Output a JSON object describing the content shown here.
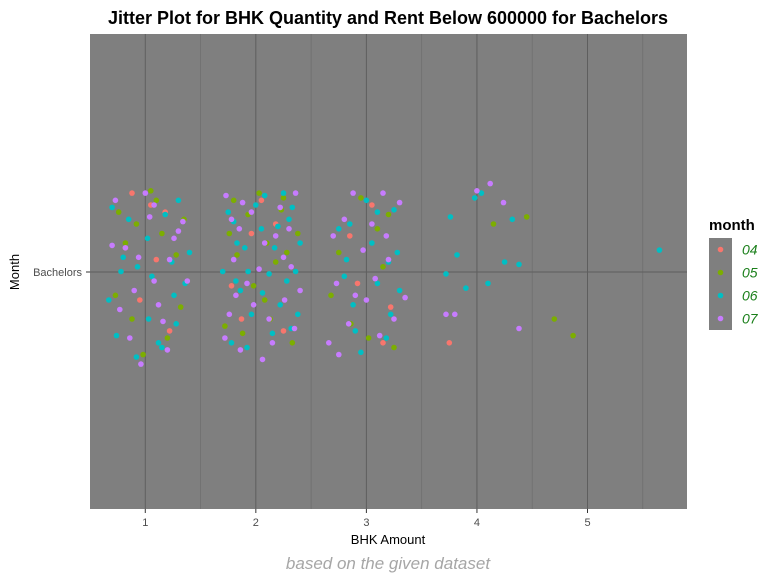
{
  "chart_data": {
    "type": "scatter",
    "title": "Jitter Plot for BHK Quantity and Rent Below 600000 for Bachelors",
    "xlabel": "BHK Amount",
    "ylabel": "Month",
    "caption": "based on the given dataset",
    "x_ticks": [
      "1",
      "2",
      "3",
      "4",
      "5"
    ],
    "y_categories": [
      "Bachelors"
    ],
    "xlim": [
      0.5,
      5.9
    ],
    "jitter": {
      "x_width": 0.4,
      "y_height": 0.4
    },
    "grid": true,
    "background": "#7f7f7f",
    "legend": {
      "title": "month",
      "position": "right"
    },
    "series": [
      {
        "name": "04",
        "color": "#F8766D",
        "points": [
          [
            0.88,
            0.33
          ],
          [
            1.05,
            0.28
          ],
          [
            1.18,
            0.25
          ],
          [
            0.95,
            -0.12
          ],
          [
            1.22,
            -0.25
          ],
          [
            0.82,
            0.1
          ],
          [
            1.1,
            0.05
          ],
          [
            1.96,
            0.16
          ],
          [
            2.18,
            0.2
          ],
          [
            1.87,
            -0.2
          ],
          [
            2.25,
            -0.25
          ],
          [
            2.05,
            0.3
          ],
          [
            1.78,
            -0.06
          ],
          [
            3.05,
            0.28
          ],
          [
            2.92,
            -0.05
          ],
          [
            3.15,
            -0.3
          ],
          [
            2.85,
            0.15
          ],
          [
            3.22,
            -0.15
          ],
          [
            3.75,
            -0.3
          ]
        ]
      },
      {
        "name": "05",
        "color": "#7CAE00",
        "points": [
          [
            1.05,
            0.34
          ],
          [
            0.82,
            0.12
          ],
          [
            0.92,
            0.2
          ],
          [
            1.2,
            -0.28
          ],
          [
            1.35,
            0.22
          ],
          [
            0.73,
            -0.1
          ],
          [
            1.28,
            0.07
          ],
          [
            0.98,
            -0.35
          ],
          [
            1.15,
            0.16
          ],
          [
            0.88,
            -0.2
          ],
          [
            1.1,
            0.3
          ],
          [
            1.32,
            -0.15
          ],
          [
            0.76,
            0.25
          ],
          [
            2.03,
            0.33
          ],
          [
            1.83,
            0.07
          ],
          [
            2.23,
            0.26
          ],
          [
            1.93,
            0.24
          ],
          [
            2.33,
            -0.3
          ],
          [
            1.76,
            0.16
          ],
          [
            2.13,
            -0.2
          ],
          [
            2.28,
            0.08
          ],
          [
            1.88,
            -0.26
          ],
          [
            2.38,
            0.16
          ],
          [
            2.08,
            -0.12
          ],
          [
            1.8,
            0.3
          ],
          [
            2.18,
            0.04
          ],
          [
            1.98,
            -0.06
          ],
          [
            2.25,
            0.31
          ],
          [
            2.1,
            0.12
          ],
          [
            1.72,
            -0.23
          ],
          [
            2.95,
            0.31
          ],
          [
            3.1,
            0.18
          ],
          [
            2.75,
            0.08
          ],
          [
            3.25,
            -0.32
          ],
          [
            2.86,
            -0.22
          ],
          [
            3.2,
            0.24
          ],
          [
            2.68,
            -0.1
          ],
          [
            3.15,
            0.02
          ],
          [
            3.02,
            -0.28
          ],
          [
            4.15,
            0.2
          ],
          [
            4.7,
            -0.2
          ],
          [
            4.87,
            -0.27
          ],
          [
            4.45,
            0.23
          ]
        ]
      },
      {
        "name": "06",
        "color": "#00BFC4",
        "points": [
          [
            0.7,
            0.27
          ],
          [
            0.85,
            0.22
          ],
          [
            1.02,
            0.14
          ],
          [
            1.3,
            0.3
          ],
          [
            0.78,
            0.0
          ],
          [
            1.06,
            -0.02
          ],
          [
            1.26,
            -0.1
          ],
          [
            0.74,
            -0.27
          ],
          [
            0.92,
            -0.36
          ],
          [
            1.15,
            -0.32
          ],
          [
            1.36,
            -0.05
          ],
          [
            0.8,
            0.06
          ],
          [
            1.18,
            0.24
          ],
          [
            1.03,
            -0.2
          ],
          [
            0.93,
            0.02
          ],
          [
            1.28,
            -0.22
          ],
          [
            1.24,
            0.04
          ],
          [
            0.67,
            -0.12
          ],
          [
            1.12,
            -0.3
          ],
          [
            1.4,
            0.08
          ],
          [
            1.8,
            0.21
          ],
          [
            2.05,
            0.18
          ],
          [
            2.25,
            0.33
          ],
          [
            1.7,
            0.0
          ],
          [
            2.12,
            -0.01
          ],
          [
            2.36,
            0.0
          ],
          [
            1.82,
            -0.04
          ],
          [
            2.2,
            0.19
          ],
          [
            1.92,
            -0.32
          ],
          [
            2.32,
            -0.24
          ],
          [
            2.0,
            0.28
          ],
          [
            1.75,
            0.25
          ],
          [
            2.28,
            -0.04
          ],
          [
            1.9,
            0.1
          ],
          [
            2.15,
            -0.26
          ],
          [
            2.4,
            0.12
          ],
          [
            1.96,
            -0.18
          ],
          [
            2.08,
            0.32
          ],
          [
            1.86,
            -0.08
          ],
          [
            2.22,
            -0.14
          ],
          [
            2.3,
            0.22
          ],
          [
            1.78,
            -0.3
          ],
          [
            2.06,
            -0.09
          ],
          [
            2.33,
            0.27
          ],
          [
            1.93,
            0.0
          ],
          [
            2.17,
            0.1
          ],
          [
            2.38,
            -0.18
          ],
          [
            1.83,
            0.12
          ],
          [
            2.85,
            0.2
          ],
          [
            3.05,
            0.12
          ],
          [
            3.25,
            0.26
          ],
          [
            2.8,
            -0.02
          ],
          [
            3.1,
            -0.05
          ],
          [
            3.28,
            0.08
          ],
          [
            2.9,
            -0.25
          ],
          [
            3.18,
            -0.28
          ],
          [
            2.75,
            0.18
          ],
          [
            3.0,
            0.3
          ],
          [
            3.22,
            -0.18
          ],
          [
            2.95,
            -0.34
          ],
          [
            3.1,
            0.25
          ],
          [
            2.82,
            0.05
          ],
          [
            3.2,
            0.04
          ],
          [
            3.3,
            -0.08
          ],
          [
            2.88,
            -0.14
          ],
          [
            3.76,
            0.23
          ],
          [
            3.82,
            0.07
          ],
          [
            3.72,
            -0.01
          ],
          [
            3.98,
            0.31
          ],
          [
            4.04,
            0.33
          ],
          [
            4.32,
            0.22
          ],
          [
            4.25,
            0.04
          ],
          [
            4.38,
            0.03
          ],
          [
            4.1,
            -0.05
          ],
          [
            5.65,
            0.09
          ],
          [
            3.9,
            -0.07
          ]
        ]
      },
      {
        "name": "07",
        "color": "#C77CFF",
        "points": [
          [
            0.73,
            0.3
          ],
          [
            1.0,
            0.33
          ],
          [
            1.22,
            0.05
          ],
          [
            0.82,
            0.1
          ],
          [
            1.08,
            -0.04
          ],
          [
            1.34,
            0.21
          ],
          [
            0.9,
            -0.08
          ],
          [
            1.16,
            -0.21
          ],
          [
            0.96,
            -0.39
          ],
          [
            1.3,
            0.17
          ],
          [
            0.77,
            -0.16
          ],
          [
            1.08,
            0.28
          ],
          [
            1.2,
            -0.33
          ],
          [
            0.86,
            -0.28
          ],
          [
            1.26,
            0.14
          ],
          [
            0.94,
            0.06
          ],
          [
            1.12,
            -0.14
          ],
          [
            0.7,
            0.11
          ],
          [
            1.38,
            -0.04
          ],
          [
            1.04,
            0.23
          ],
          [
            1.73,
            0.32
          ],
          [
            2.22,
            0.27
          ],
          [
            1.78,
            0.22
          ],
          [
            2.36,
            0.33
          ],
          [
            1.85,
            0.18
          ],
          [
            2.08,
            0.12
          ],
          [
            1.92,
            -0.05
          ],
          [
            2.32,
            0.02
          ],
          [
            1.76,
            -0.18
          ],
          [
            2.26,
            -0.12
          ],
          [
            1.86,
            -0.33
          ],
          [
            2.15,
            -0.3
          ],
          [
            1.96,
            0.25
          ],
          [
            2.4,
            -0.08
          ],
          [
            1.8,
            0.05
          ],
          [
            2.12,
            -0.2
          ],
          [
            2.3,
            0.18
          ],
          [
            1.72,
            -0.28
          ],
          [
            2.03,
            0.01
          ],
          [
            2.18,
            0.15
          ],
          [
            1.88,
            0.29
          ],
          [
            2.35,
            -0.24
          ],
          [
            1.98,
            -0.14
          ],
          [
            2.25,
            0.06
          ],
          [
            1.82,
            -0.1
          ],
          [
            2.06,
            -0.37
          ],
          [
            2.88,
            0.33
          ],
          [
            2.7,
            0.15
          ],
          [
            3.15,
            0.33
          ],
          [
            2.8,
            0.22
          ],
          [
            3.05,
            0.2
          ],
          [
            3.2,
            0.05
          ],
          [
            2.73,
            -0.05
          ],
          [
            3.0,
            -0.12
          ],
          [
            3.25,
            -0.2
          ],
          [
            2.9,
            -0.1
          ],
          [
            3.12,
            -0.27
          ],
          [
            2.75,
            -0.35
          ],
          [
            3.3,
            0.29
          ],
          [
            2.97,
            0.09
          ],
          [
            2.84,
            -0.22
          ],
          [
            3.18,
            0.15
          ],
          [
            3.08,
            -0.03
          ],
          [
            2.66,
            -0.3
          ],
          [
            3.35,
            -0.11
          ],
          [
            4.12,
            0.37
          ],
          [
            4.0,
            0.34
          ],
          [
            4.38,
            -0.24
          ],
          [
            4.24,
            0.29
          ],
          [
            3.72,
            -0.18
          ],
          [
            3.8,
            -0.18
          ]
        ]
      }
    ]
  }
}
